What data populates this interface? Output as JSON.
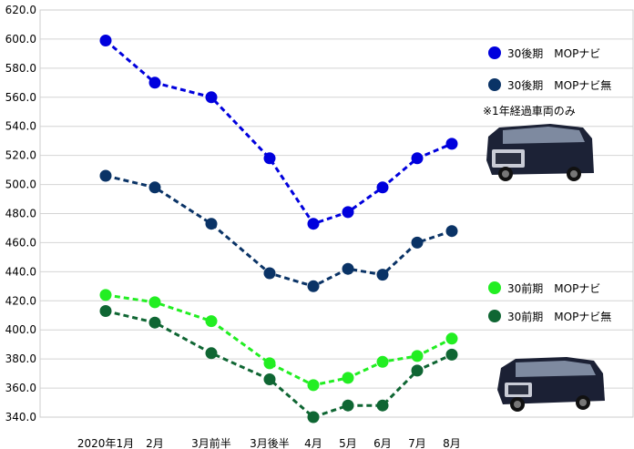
{
  "chart_data": {
    "type": "line",
    "categories": [
      "2020年1月",
      "2月",
      "3月前半",
      "3月後半",
      "4月",
      "5月",
      "6月",
      "7月",
      "8月"
    ],
    "ylim": [
      340,
      620
    ],
    "yticks": [
      "620.0",
      "600.0",
      "580.0",
      "560.0",
      "540.0",
      "520.0",
      "500.0",
      "480.0",
      "460.0",
      "440.0",
      "420.0",
      "400.0",
      "380.0",
      "360.0",
      "340.0"
    ],
    "grid": true,
    "legend_position": "right",
    "series": [
      {
        "name": "30後期　MOPナビ",
        "color": "#0000dd",
        "values": [
          599,
          570,
          560,
          518,
          473,
          481,
          498,
          518,
          528
        ]
      },
      {
        "name": "30後期　MOPナビ無",
        "color": "#0a3366",
        "values": [
          506,
          498,
          473,
          439,
          430,
          442,
          438,
          460,
          468
        ]
      },
      {
        "name": "30前期　MOPナビ",
        "color": "#22ee22",
        "values": [
          424,
          419,
          406,
          377,
          362,
          367,
          378,
          382,
          394
        ]
      },
      {
        "name": "30前期　MOPナビ無",
        "color": "#0f6633",
        "values": [
          413,
          405,
          384,
          366,
          340,
          348,
          348,
          372,
          383
        ]
      }
    ],
    "annotation": "※1年経過車両のみ"
  }
}
